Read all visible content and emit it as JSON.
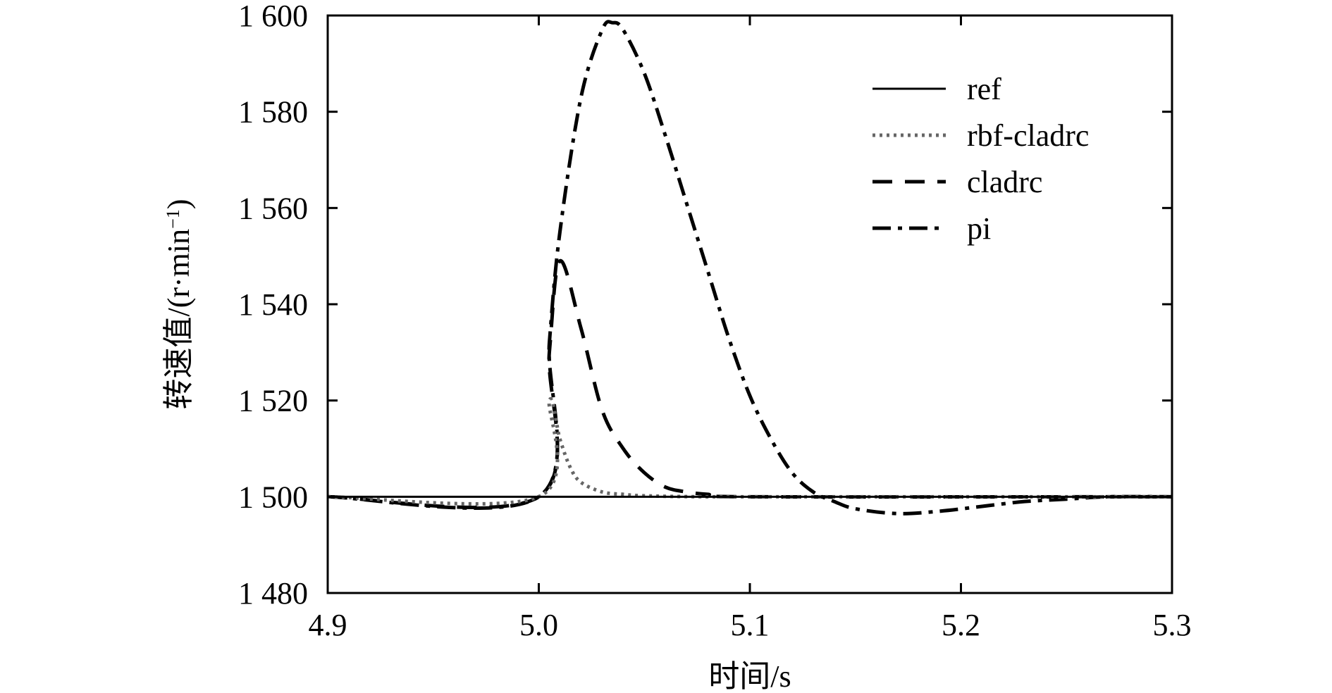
{
  "chart_data": {
    "type": "line",
    "xlabel": "时间/s",
    "ylabel": "转速值/(r·min",
    "ylabel_sup": "−1",
    "ylabel_close": ")",
    "xlim": [
      4.9,
      5.3
    ],
    "ylim": [
      1480,
      1600
    ],
    "xticks": [
      4.9,
      5.0,
      5.1,
      5.2,
      5.3
    ],
    "xtick_labels": [
      "4.9",
      "5.0",
      "5.1",
      "5.2",
      "5.3"
    ],
    "yticks": [
      1480,
      1500,
      1520,
      1540,
      1560,
      1580,
      1600
    ],
    "ytick_labels": [
      "1 480",
      "1 500",
      "1 520",
      "1 540",
      "1 560",
      "1 580",
      "1 600"
    ],
    "grid": false,
    "legend_position": "top-right",
    "series": [
      {
        "name": "ref",
        "style": "solid",
        "color": "#000000",
        "x": [
          4.9,
          5.3
        ],
        "y": [
          1500,
          1500
        ]
      },
      {
        "name": "rbf-cladrc",
        "style": "dotted",
        "color": "#666666",
        "x": [
          4.9,
          5.0,
          5.005,
          5.01,
          5.015,
          5.02,
          5.03,
          5.04,
          5.05,
          5.08,
          5.15,
          5.3
        ],
        "y": [
          1500,
          1500,
          1520,
          1512,
          1506,
          1503,
          1501,
          1500.5,
          1500.2,
          1500,
          1500,
          1500
        ]
      },
      {
        "name": "cladrc",
        "style": "dashed",
        "color": "#000000",
        "x": [
          4.9,
          5.0,
          5.005,
          5.01,
          5.02,
          5.03,
          5.04,
          5.05,
          5.06,
          5.07,
          5.08,
          5.1,
          5.3
        ],
        "y": [
          1500,
          1500,
          1530,
          1549,
          1535,
          1518,
          1510,
          1505,
          1502,
          1501,
          1500.5,
          1500,
          1500
        ]
      },
      {
        "name": "pi",
        "style": "dashdot",
        "color": "#000000",
        "x": [
          4.9,
          5.0,
          5.005,
          5.01,
          5.02,
          5.03,
          5.035,
          5.04,
          5.05,
          5.06,
          5.07,
          5.08,
          5.09,
          5.1,
          5.11,
          5.12,
          5.13,
          5.14,
          5.15,
          5.17,
          5.19,
          5.21,
          5.23,
          5.25,
          5.27,
          5.3
        ],
        "y": [
          1500,
          1500,
          1532,
          1555,
          1583,
          1597,
          1598.5,
          1597,
          1588,
          1575,
          1561,
          1547,
          1533,
          1521,
          1512,
          1505,
          1501,
          1499,
          1497.5,
          1496.5,
          1497,
          1498,
          1499,
          1499.5,
          1500,
          1500
        ]
      }
    ]
  }
}
